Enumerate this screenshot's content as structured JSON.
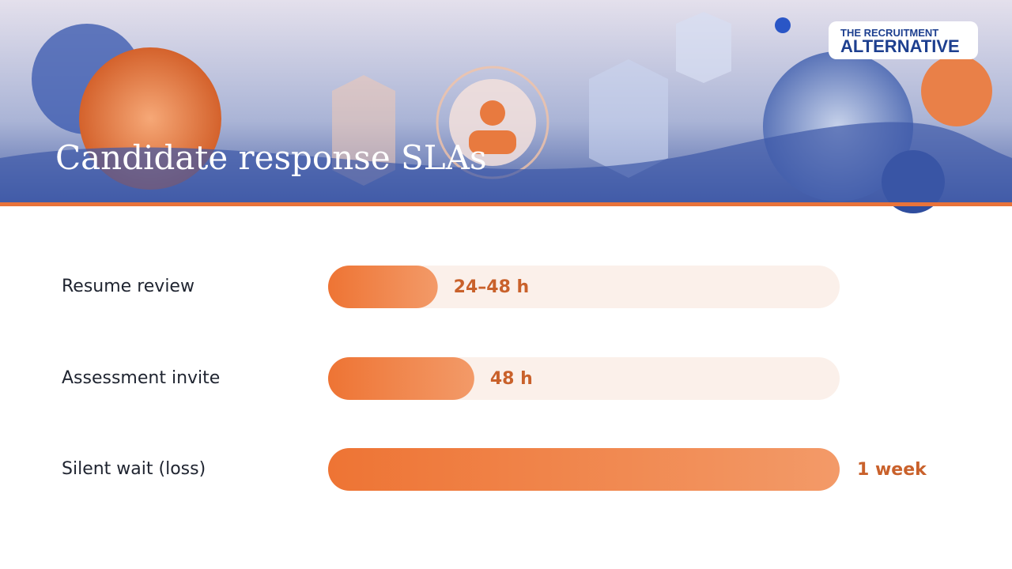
{
  "logo": {
    "line1": "THE RECRUITMENT",
    "line2": "ALTERNATIVE"
  },
  "chart_data": {
    "type": "bar",
    "orientation": "horizontal",
    "title": "Candidate response SLAs",
    "categories": [
      "Resume review",
      "Assessment invite",
      "Silent wait (loss)"
    ],
    "values": [
      36,
      48,
      168
    ],
    "value_labels": [
      "24–48 h",
      "48 h",
      "1 week"
    ],
    "xlim": [
      0,
      168
    ],
    "color": "#ee7434"
  }
}
